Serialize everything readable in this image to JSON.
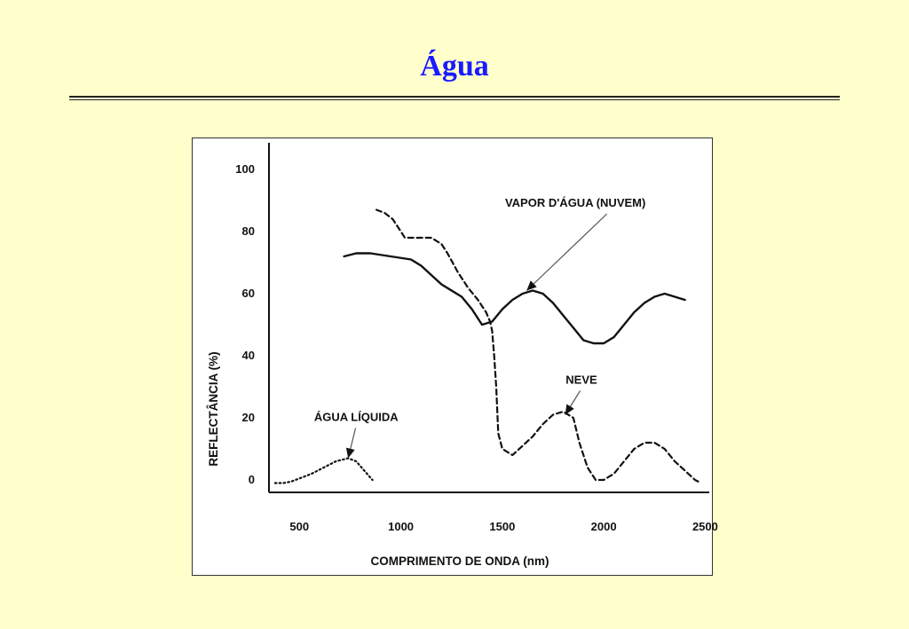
{
  "slide": {
    "title": "Água"
  },
  "chart_data": {
    "type": "line",
    "xlabel": "COMPRIMENTO DE ONDA (nm)",
    "ylabel": "REFLECTÂNCIA (%)",
    "xlim": [
      350,
      2520
    ],
    "ylim": [
      -4,
      110
    ],
    "x_ticks": [
      500,
      1000,
      1500,
      2000,
      2500
    ],
    "y_ticks": [
      0,
      20,
      40,
      60,
      80,
      100
    ],
    "grid": false,
    "legend": "none",
    "series": [
      {
        "label": "VAPOR D'ÁGUA (NUVEM)",
        "style": "solid",
        "x": [
          720,
          780,
          850,
          950,
          1050,
          1100,
          1200,
          1300,
          1350,
          1400,
          1450,
          1500,
          1550,
          1600,
          1650,
          1700,
          1750,
          1800,
          1850,
          1900,
          1950,
          2000,
          2050,
          2100,
          2150,
          2200,
          2250,
          2300,
          2350,
          2400
        ],
        "y": [
          72,
          73,
          73,
          72,
          71,
          69,
          63,
          59,
          55,
          50,
          51,
          55,
          58,
          60,
          61,
          60,
          57,
          53,
          49,
          45,
          44,
          44,
          46,
          50,
          54,
          57,
          59,
          60,
          59,
          58
        ]
      },
      {
        "label": "NEVE",
        "style": "dashed",
        "x": [
          880,
          920,
          960,
          1000,
          1020,
          1050,
          1100,
          1150,
          1200,
          1230,
          1280,
          1330,
          1380,
          1420,
          1440,
          1450,
          1460,
          1470,
          1480,
          1500,
          1550,
          1600,
          1650,
          1700,
          1750,
          1800,
          1850,
          1880,
          1920,
          1960,
          2000,
          2050,
          2100,
          2150,
          2200,
          2250,
          2300,
          2350,
          2400,
          2450,
          2480
        ],
        "y": [
          87,
          86,
          84,
          80,
          78,
          78,
          78,
          78,
          76,
          73,
          67,
          62,
          58,
          54,
          51,
          48,
          40,
          30,
          15,
          10,
          8,
          11,
          14,
          18,
          21,
          22,
          20,
          12,
          4,
          0,
          0,
          2,
          6,
          10,
          12,
          12,
          10,
          6,
          3,
          0,
          -1
        ]
      },
      {
        "label": "ÁGUA LÍQUIDA",
        "style": "dotted",
        "x": [
          380,
          420,
          460,
          500,
          560,
          620,
          680,
          740,
          780,
          820,
          860
        ],
        "y": [
          -1,
          -1,
          -0.5,
          0.5,
          2,
          4,
          6,
          7,
          6,
          3,
          0
        ]
      }
    ],
    "annotations": [
      {
        "text": "VAPOR D'ÁGUA (NUVEM)",
        "x": 1860,
        "y": 88,
        "arrow_to": [
          1620,
          61
        ]
      },
      {
        "text": "NEVE",
        "x": 1890,
        "y": 31,
        "arrow_to": [
          1810,
          21
        ]
      },
      {
        "text": "ÁGUA LÍQUIDA",
        "x": 780,
        "y": 19,
        "arrow_to": [
          740,
          7
        ]
      }
    ]
  }
}
